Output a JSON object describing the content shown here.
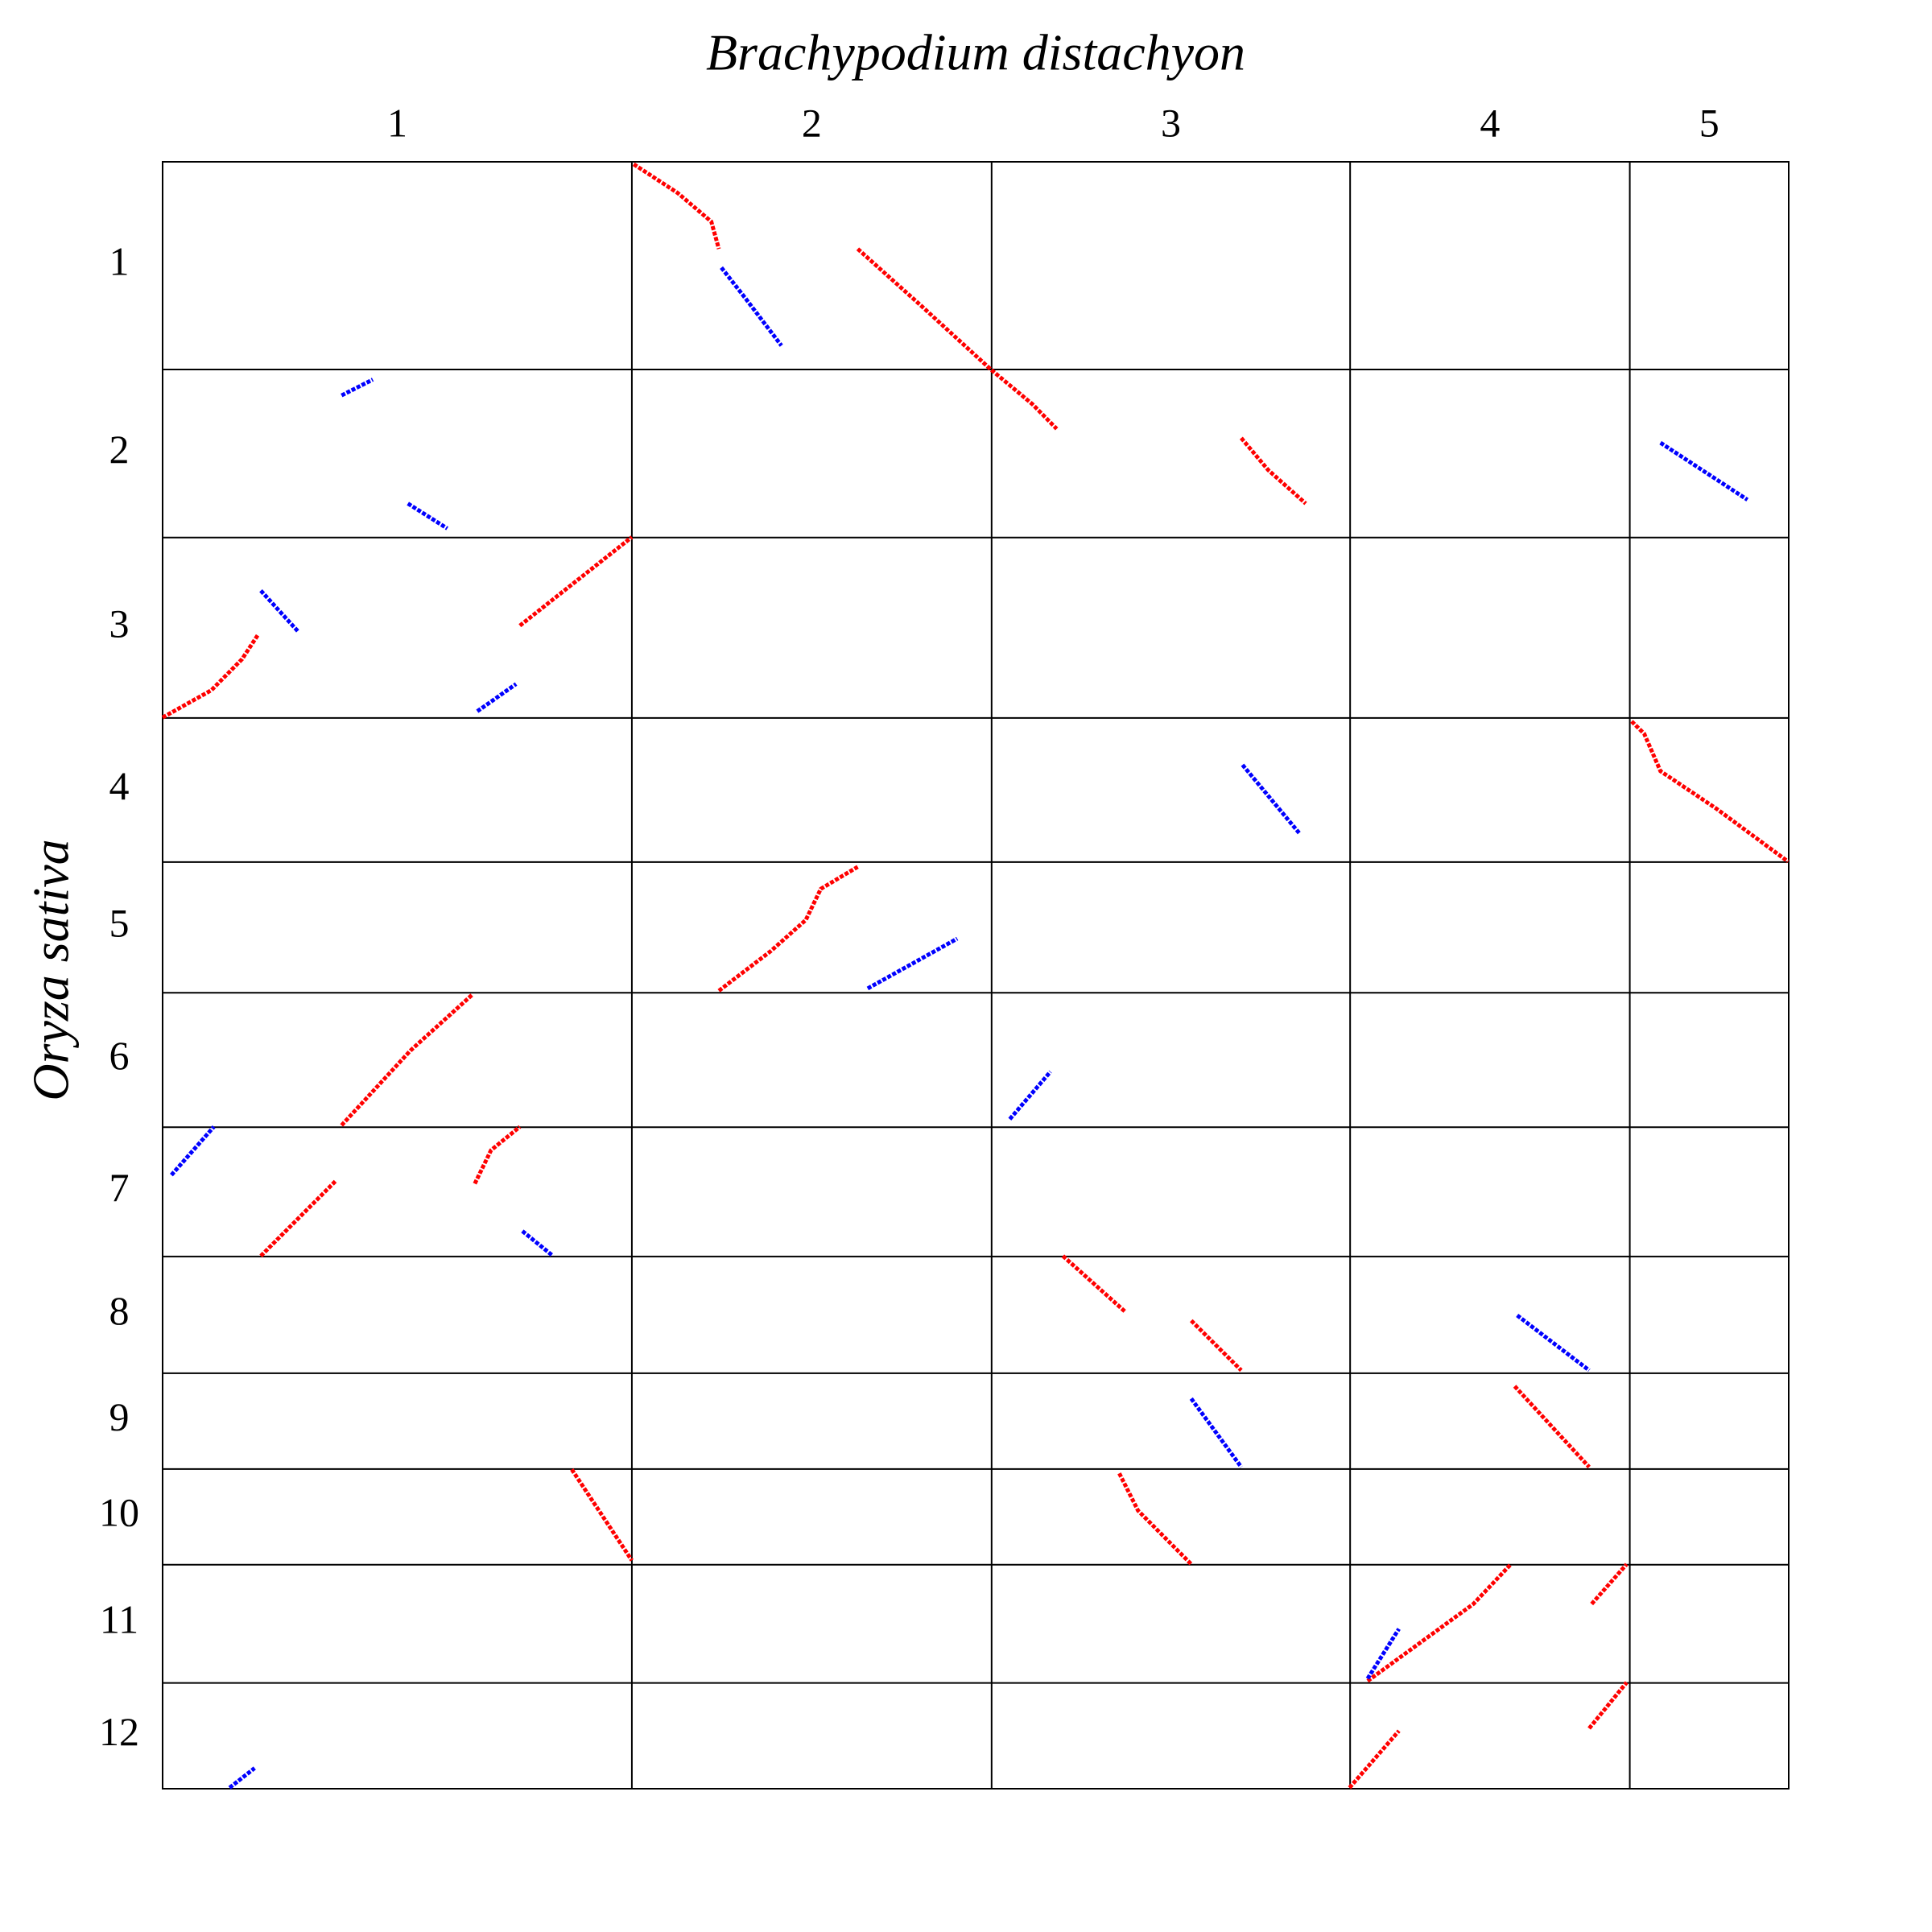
{
  "chart_data": {
    "type": "dotplot",
    "x_title": "Brachypodium distachyon",
    "y_title": "Oryza sativa",
    "x_chromosomes": {
      "labels": [
        "1",
        "2",
        "3",
        "4",
        "5"
      ],
      "sizes": [
        75,
        57.5,
        57.3,
        44.7,
        25.4
      ]
    },
    "y_chromosomes": {
      "labels": [
        "1",
        "2",
        "3",
        "4",
        "5",
        "6",
        "7",
        "8",
        "9",
        "10",
        "11",
        "12"
      ],
      "sizes": [
        43.4,
        35.1,
        37.7,
        30.1,
        27.3,
        28.1,
        27,
        24.4,
        20,
        20,
        24.7,
        22.1
      ]
    },
    "xlim": [
      0,
      259.9
    ],
    "ylim": [
      0,
      339.9
    ],
    "segments": [
      {
        "color": "#ff0000",
        "x": [
          75.3,
          82.3,
          87.7,
          88.9
        ],
        "y": [
          0.5,
          6.5,
          12.5,
          18.2
        ]
      },
      {
        "color": "#0000ff",
        "x": [
          89.3,
          93.2,
          98.9
        ],
        "y": [
          22.1,
          28.6,
          38.4
        ]
      },
      {
        "color": "#ff0000",
        "x": [
          111.1,
          121.1,
          132.4,
          139.0,
          142.9
        ],
        "y": [
          18.2,
          29.9,
          43.4,
          50.6,
          55.8
        ]
      },
      {
        "color": "#ff0000",
        "x": [
          172.4,
          176.7,
          182.7
        ],
        "y": [
          57.7,
          64.4,
          71.4
        ]
      },
      {
        "color": "#0000ff",
        "x": [
          239.4,
          253.3
        ],
        "y": [
          58.7,
          70.6
        ]
      },
      {
        "color": "#ff0000",
        "x": [
          0,
          7.8,
          12.7,
          15.3
        ],
        "y": [
          116.1,
          110.4,
          103.9,
          98.7
        ]
      },
      {
        "color": "#ff0000",
        "x": [
          57.1,
          75.0
        ],
        "y": [
          96.9,
          78.4
        ]
      },
      {
        "color": "#0000ff",
        "x": [
          15.7,
          21.7
        ],
        "y": [
          89.6,
          98.2
        ]
      },
      {
        "color": "#0000ff",
        "x": [
          50.3,
          56.5
        ],
        "y": [
          114.8,
          109.1
        ]
      },
      {
        "color": "#0000ff",
        "x": [
          172.6,
          181.7
        ],
        "y": [
          126.0,
          140.3
        ]
      },
      {
        "color": "#ff0000",
        "x": [
          234.8,
          236.8,
          239.4,
          248.3,
          259.8
        ],
        "y": [
          116.9,
          119.5,
          127.3,
          135.1,
          146.2
        ]
      },
      {
        "color": "#ff0000",
        "x": [
          88.9,
          97.2,
          102.8,
          105.2,
          111.1
        ],
        "y": [
          173.2,
          164.9,
          158.4,
          151.9,
          147.3
        ]
      },
      {
        "color": "#0000ff",
        "x": [
          112.7,
          127.0
        ],
        "y": [
          172.7,
          162.3
        ]
      },
      {
        "color": "#ff0000",
        "x": [
          28.6,
          39.6,
          49.5
        ],
        "y": [
          201.3,
          185.7,
          174.0
        ]
      },
      {
        "color": "#0000ff",
        "x": [
          135.4,
          141.9
        ],
        "y": [
          200.0,
          190.1
        ]
      },
      {
        "color": "#ff0000",
        "x": [
          15.7,
          27.6
        ],
        "y": [
          228.6,
          213.0
        ]
      },
      {
        "color": "#ff0000",
        "x": [
          49.9,
          52.5,
          57.1
        ],
        "y": [
          213.5,
          206.5,
          201.6
        ]
      },
      {
        "color": "#0000ff",
        "x": [
          57.5,
          62.4
        ],
        "y": [
          223.4,
          228.6
        ]
      },
      {
        "color": "#0000ff",
        "x": [
          1.4,
          8.2
        ],
        "y": [
          211.7,
          201.6
        ]
      },
      {
        "color": "#ff0000",
        "x": [
          143.9,
          153.9
        ],
        "y": [
          228.6,
          240.3
        ]
      },
      {
        "color": "#ff0000",
        "x": [
          164.4,
          172.4
        ],
        "y": [
          242.1,
          252.5
        ]
      },
      {
        "color": "#0000ff",
        "x": [
          216.5,
          228.0
        ],
        "y": [
          241.0,
          252.5
        ]
      },
      {
        "color": "#0000ff",
        "x": [
          164.4,
          172.4
        ],
        "y": [
          258.4,
          272.7
        ]
      },
      {
        "color": "#ff0000",
        "x": [
          216.1,
          228.0
        ],
        "y": [
          255.8,
          272.7
        ]
      },
      {
        "color": "#ff0000",
        "x": [
          152.9,
          155.9,
          164.4
        ],
        "y": [
          274.0,
          281.8,
          293.0
        ]
      },
      {
        "color": "#ff0000",
        "x": [
          65.4,
          75.0
        ],
        "y": [
          273.2,
          292.2
        ]
      },
      {
        "color": "#ff0000",
        "x": [
          192.6,
          209.5,
          215.5
        ],
        "y": [
          317.4,
          301.3,
          293.0
        ]
      },
      {
        "color": "#ff0000",
        "x": [
          228.4,
          234.0
        ],
        "y": [
          301.3,
          293.0
        ]
      },
      {
        "color": "#0000ff",
        "x": [
          192.6,
          197.6
        ],
        "y": [
          316.9,
          306.5
        ]
      },
      {
        "color": "#ff0000",
        "x": [
          189.7,
          197.6
        ],
        "y": [
          339.7,
          327.8
        ]
      },
      {
        "color": "#ff0000",
        "x": [
          228.0,
          234.0
        ],
        "y": [
          327.3,
          317.7
        ]
      },
      {
        "color": "#0000ff",
        "x": [
          10.7,
          14.7
        ],
        "y": [
          339.7,
          335.6
        ]
      },
      {
        "color": "#0000ff",
        "x": [
          28.6,
          33.6
        ],
        "y": [
          48.8,
          45.5
        ]
      },
      {
        "color": "#0000ff",
        "x": [
          39.2,
          45.5
        ],
        "y": [
          71.4,
          76.6
        ]
      }
    ]
  }
}
